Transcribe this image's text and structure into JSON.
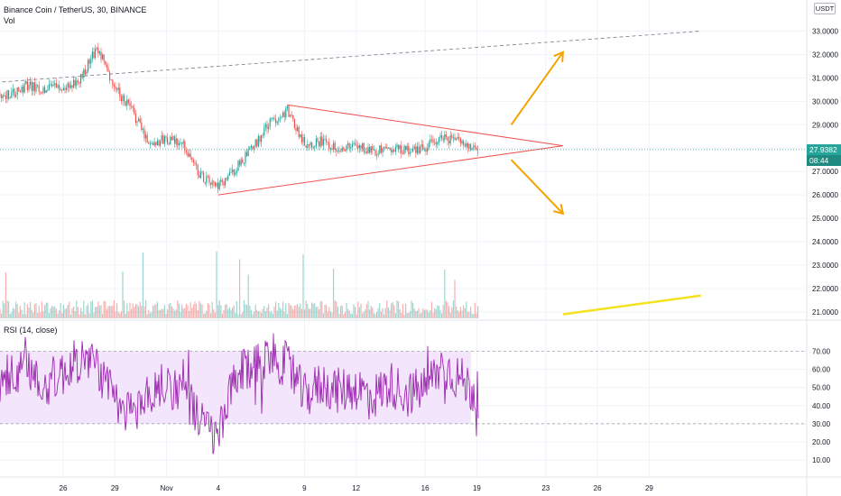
{
  "legend": {
    "symbol": "Binance Coin / TetherUS, 30, BINANCE",
    "vol": "Vol",
    "rsi": "RSI (14, close)"
  },
  "currency_button": "USDT",
  "last_price": "27.9382",
  "countdown": "08:44",
  "colors": {
    "up": "#26a69a",
    "down": "#ef5350",
    "rsi_line": "#9c27b0",
    "rsi_band": "#f3e5fb",
    "triangle": "#ef5350",
    "arrows": "#f5a300",
    "yellow_line": "#f5e11d",
    "dashed_line": "#787b86",
    "price_line": "#26a69a"
  },
  "chart_data": [
    {
      "type": "candlestick",
      "title": "Binance Coin / TetherUS, 30, BINANCE",
      "x_ticks": [
        "26",
        "29",
        "Nov",
        "4",
        "9",
        "12",
        "16",
        "19",
        "23",
        "26",
        "29"
      ],
      "y_ticks": [
        33,
        32,
        31,
        30,
        29,
        28,
        27,
        26,
        25,
        24,
        23,
        22,
        21
      ],
      "ylim": [
        20.6,
        33.6
      ],
      "grid": true,
      "series_anchors": [
        {
          "x": "Oct 23",
          "close": 30.3
        },
        {
          "x": "Oct 24",
          "close": 30.7
        },
        {
          "x": "Oct 25",
          "close": 30.5
        },
        {
          "x": "Oct 26",
          "close": 30.6
        },
        {
          "x": "Oct 27",
          "close": 31.0
        },
        {
          "x": "Oct 28",
          "close": 32.3
        },
        {
          "x": "Oct 29",
          "close": 30.6
        },
        {
          "x": "Oct 30",
          "close": 29.6
        },
        {
          "x": "Oct 31",
          "close": 28.2
        },
        {
          "x": "Nov 1",
          "close": 28.4
        },
        {
          "x": "Nov 2",
          "close": 28.1
        },
        {
          "x": "Nov 3",
          "close": 26.8
        },
        {
          "x": "Nov 4",
          "close": 26.3
        },
        {
          "x": "Nov 5",
          "close": 27.1
        },
        {
          "x": "Nov 6",
          "close": 28.0
        },
        {
          "x": "Nov 7",
          "close": 29.1
        },
        {
          "x": "Nov 8",
          "close": 29.6
        },
        {
          "x": "Nov 9",
          "close": 28.2
        },
        {
          "x": "Nov 10",
          "close": 28.3
        },
        {
          "x": "Nov 11",
          "close": 28.0
        },
        {
          "x": "Nov 12",
          "close": 28.1
        },
        {
          "x": "Nov 13",
          "close": 27.9
        },
        {
          "x": "Nov 14",
          "close": 28.0
        },
        {
          "x": "Nov 15",
          "close": 27.9
        },
        {
          "x": "Nov 16",
          "close": 28.0
        },
        {
          "x": "Nov 17",
          "close": 28.5
        },
        {
          "x": "Nov 18",
          "close": 28.3
        },
        {
          "x": "Nov 19",
          "close": 27.94
        }
      ],
      "last_price": 27.9382,
      "annotations": [
        {
          "kind": "dashed-trendline",
          "from": {
            "x": "Oct 21",
            "y": 30.75
          },
          "to": {
            "x": "Dec 2",
            "y": 33.0
          }
        },
        {
          "kind": "triangle-upper",
          "from": {
            "x": "Nov 8",
            "y": 29.85
          },
          "to": {
            "x": "Nov 24",
            "y": 28.1
          }
        },
        {
          "kind": "triangle-lower",
          "from": {
            "x": "Nov 4",
            "y": 26.0
          },
          "to": {
            "x": "Nov 24",
            "y": 28.1
          }
        },
        {
          "kind": "arrow-up",
          "from": {
            "x": "Nov 21",
            "y": 29.0
          },
          "to": {
            "x": "Nov 24",
            "y": 32.1
          }
        },
        {
          "kind": "arrow-down",
          "from": {
            "x": "Nov 21",
            "y": 27.5
          },
          "to": {
            "x": "Nov 24",
            "y": 25.2
          }
        },
        {
          "kind": "yellow-line",
          "from": {
            "x": "Nov 24",
            "y": 20.9
          },
          "to": {
            "x": "Dec 2",
            "y": 21.7
          }
        }
      ]
    },
    {
      "type": "bar",
      "title": "Vol",
      "x_ticks": [
        "26",
        "29",
        "Nov",
        "4",
        "9",
        "12",
        "16",
        "19",
        "23",
        "26",
        "29"
      ],
      "colors_by_direction": true
    },
    {
      "type": "line",
      "title": "RSI (14, close)",
      "x_ticks": [
        "26",
        "29",
        "Nov",
        "4",
        "9",
        "12",
        "16",
        "19",
        "23",
        "26",
        "29"
      ],
      "y_ticks": [
        70,
        60,
        50,
        40,
        30,
        20,
        10
      ],
      "ylim": [
        5,
        80
      ],
      "band": [
        30,
        70
      ],
      "series_anchors": [
        {
          "x": "Oct 23",
          "y": 55
        },
        {
          "x": "Oct 24",
          "y": 60
        },
        {
          "x": "Oct 25",
          "y": 52
        },
        {
          "x": "Oct 26",
          "y": 58
        },
        {
          "x": "Oct 27",
          "y": 66
        },
        {
          "x": "Oct 28",
          "y": 62
        },
        {
          "x": "Oct 29",
          "y": 40
        },
        {
          "x": "Oct 30",
          "y": 36
        },
        {
          "x": "Oct 31",
          "y": 46
        },
        {
          "x": "Nov 1",
          "y": 52
        },
        {
          "x": "Nov 2",
          "y": 48
        },
        {
          "x": "Nov 3",
          "y": 30
        },
        {
          "x": "Nov 4",
          "y": 22
        },
        {
          "x": "Nov 5",
          "y": 55
        },
        {
          "x": "Nov 6",
          "y": 62
        },
        {
          "x": "Nov 7",
          "y": 68
        },
        {
          "x": "Nov 8",
          "y": 62
        },
        {
          "x": "Nov 9",
          "y": 45
        },
        {
          "x": "Nov 10",
          "y": 52
        },
        {
          "x": "Nov 11",
          "y": 48
        },
        {
          "x": "Nov 12",
          "y": 50
        },
        {
          "x": "Nov 13",
          "y": 45
        },
        {
          "x": "Nov 14",
          "y": 52
        },
        {
          "x": "Nov 15",
          "y": 46
        },
        {
          "x": "Nov 16",
          "y": 50
        },
        {
          "x": "Nov 17",
          "y": 62
        },
        {
          "x": "Nov 18",
          "y": 55
        },
        {
          "x": "Nov 19",
          "y": 46
        }
      ]
    }
  ]
}
